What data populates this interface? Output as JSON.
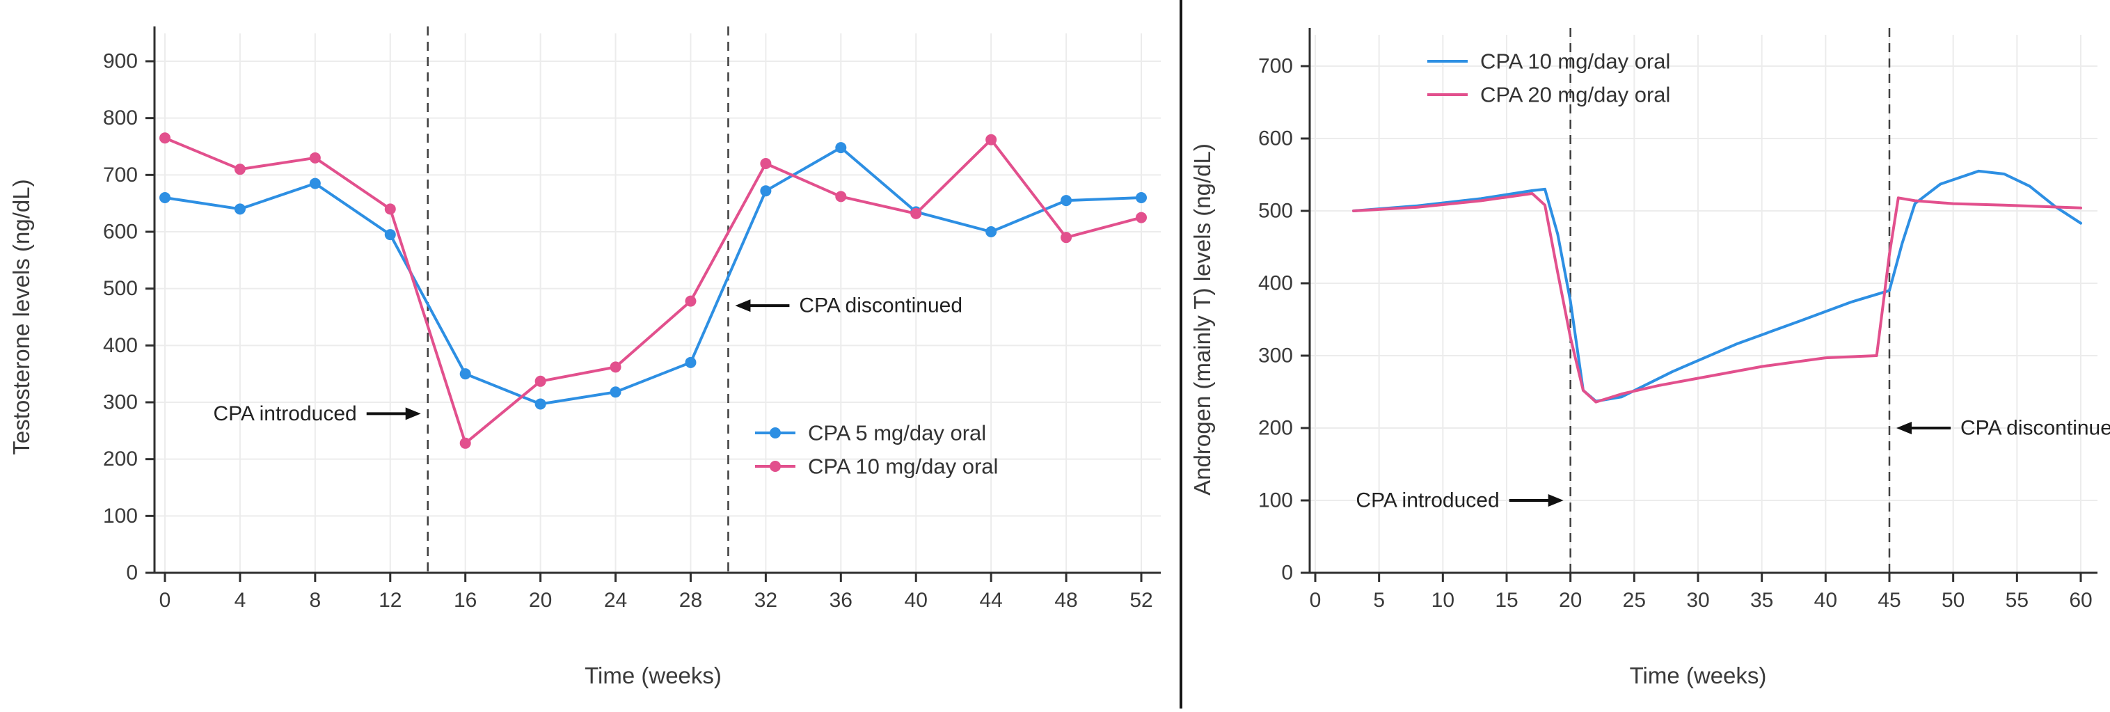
{
  "page": {
    "background": "#ffffff",
    "divider_color": "#161616"
  },
  "chart_data": [
    {
      "name": "testosterone-chart",
      "type": "line",
      "title": "",
      "xlabel": "Time (weeks)",
      "ylabel": "Testosterone levels (ng/dL)",
      "xlim": [
        0,
        52
      ],
      "ylim": [
        0,
        900
      ],
      "xticks": [
        0,
        4,
        8,
        12,
        16,
        20,
        24,
        28,
        32,
        36,
        40,
        44,
        48,
        52
      ],
      "yticks": [
        0,
        100,
        200,
        300,
        400,
        500,
        600,
        700,
        800,
        900
      ],
      "grid": true,
      "legend_position": "inside-right-lower",
      "series": [
        {
          "name": "CPA 5 mg/day oral",
          "color": "#2d8fe3",
          "markers": true,
          "points": [
            [
              0,
              660
            ],
            [
              4,
              640
            ],
            [
              8,
              685
            ],
            [
              12,
              595
            ],
            [
              16,
              350
            ],
            [
              20,
              297
            ],
            [
              24,
              318
            ],
            [
              28,
              370
            ],
            [
              32,
              672
            ],
            [
              36,
              748
            ],
            [
              40,
              635
            ],
            [
              44,
              600
            ],
            [
              48,
              655
            ],
            [
              52,
              660
            ]
          ]
        },
        {
          "name": "CPA 10 mg/day oral",
          "color": "#e2508d",
          "markers": true,
          "points": [
            [
              0,
              765
            ],
            [
              4,
              710
            ],
            [
              8,
              730
            ],
            [
              12,
              640
            ],
            [
              16,
              228
            ],
            [
              20,
              337
            ],
            [
              24,
              362
            ],
            [
              28,
              478
            ],
            [
              32,
              720
            ],
            [
              36,
              662
            ],
            [
              40,
              632
            ],
            [
              44,
              762
            ],
            [
              48,
              590
            ],
            [
              52,
              625
            ]
          ]
        }
      ],
      "vlines": [
        {
          "x": 14,
          "label": "CPA introduced",
          "text_side": "left",
          "arrow_y": 280
        },
        {
          "x": 30,
          "label": "CPA discontinued",
          "text_side": "right",
          "arrow_y": 470
        }
      ]
    },
    {
      "name": "androgen-chart",
      "type": "line",
      "title": "",
      "xlabel": "Time (weeks)",
      "ylabel": "Androgen (mainly T) levels (ng/dL)",
      "xlim": [
        0,
        60
      ],
      "ylim": [
        0,
        700
      ],
      "xticks": [
        0,
        5,
        10,
        15,
        20,
        25,
        30,
        35,
        40,
        45,
        50,
        55,
        60
      ],
      "yticks": [
        0,
        100,
        200,
        300,
        400,
        500,
        600,
        700
      ],
      "grid": true,
      "legend_position": "inside-top-left",
      "series": [
        {
          "name": "CPA 10 mg/day oral",
          "color": "#2d8fe3",
          "markers": false,
          "points": [
            [
              3,
              500
            ],
            [
              8,
              507
            ],
            [
              13,
              517
            ],
            [
              17,
              528
            ],
            [
              18,
              530
            ],
            [
              19,
              468
            ],
            [
              20,
              375
            ],
            [
              21,
              252
            ],
            [
              22,
              237
            ],
            [
              24,
              243
            ],
            [
              28,
              278
            ],
            [
              33,
              316
            ],
            [
              38,
              348
            ],
            [
              42,
              374
            ],
            [
              45,
              390
            ],
            [
              46,
              455
            ],
            [
              47,
              510
            ],
            [
              49,
              537
            ],
            [
              52,
              555
            ],
            [
              54,
              551
            ],
            [
              56,
              534
            ],
            [
              58,
              506
            ],
            [
              60,
              483
            ]
          ]
        },
        {
          "name": "CPA 20 mg/day oral",
          "color": "#e2508d",
          "markers": false,
          "points": [
            [
              3,
              500
            ],
            [
              8,
              505
            ],
            [
              13,
              514
            ],
            [
              17,
              524
            ],
            [
              18,
              508
            ],
            [
              19,
              415
            ],
            [
              20,
              325
            ],
            [
              21,
              252
            ],
            [
              22,
              236
            ],
            [
              24,
              247
            ],
            [
              27,
              259
            ],
            [
              31,
              272
            ],
            [
              35,
              285
            ],
            [
              40,
              297
            ],
            [
              44,
              300
            ],
            [
              45,
              440
            ],
            [
              45.7,
              518
            ],
            [
              47,
              514
            ],
            [
              50,
              510
            ],
            [
              54,
              508
            ],
            [
              57,
              506
            ],
            [
              60,
              504
            ]
          ]
        }
      ],
      "vlines": [
        {
          "x": 20,
          "label": "CPA introduced",
          "text_side": "left",
          "arrow_y": 100
        },
        {
          "x": 45,
          "label": "CPA discontinued",
          "text_side": "right",
          "arrow_y": 200
        }
      ]
    }
  ]
}
